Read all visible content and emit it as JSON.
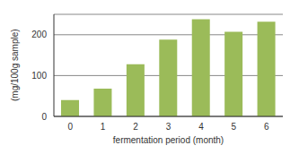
{
  "chart_data": {
    "type": "bar",
    "x_label": "fermentation period (month)",
    "y_label": "(mg/100g sample)",
    "categories": [
      "0",
      "1",
      "2",
      "3",
      "4",
      "5",
      "6"
    ],
    "values": [
      40,
      68,
      128,
      188,
      238,
      207,
      232
    ],
    "color": "#9bbb59",
    "ylim": [
      0,
      250
    ],
    "yticks": [
      0,
      100,
      200
    ],
    "grid": true
  }
}
